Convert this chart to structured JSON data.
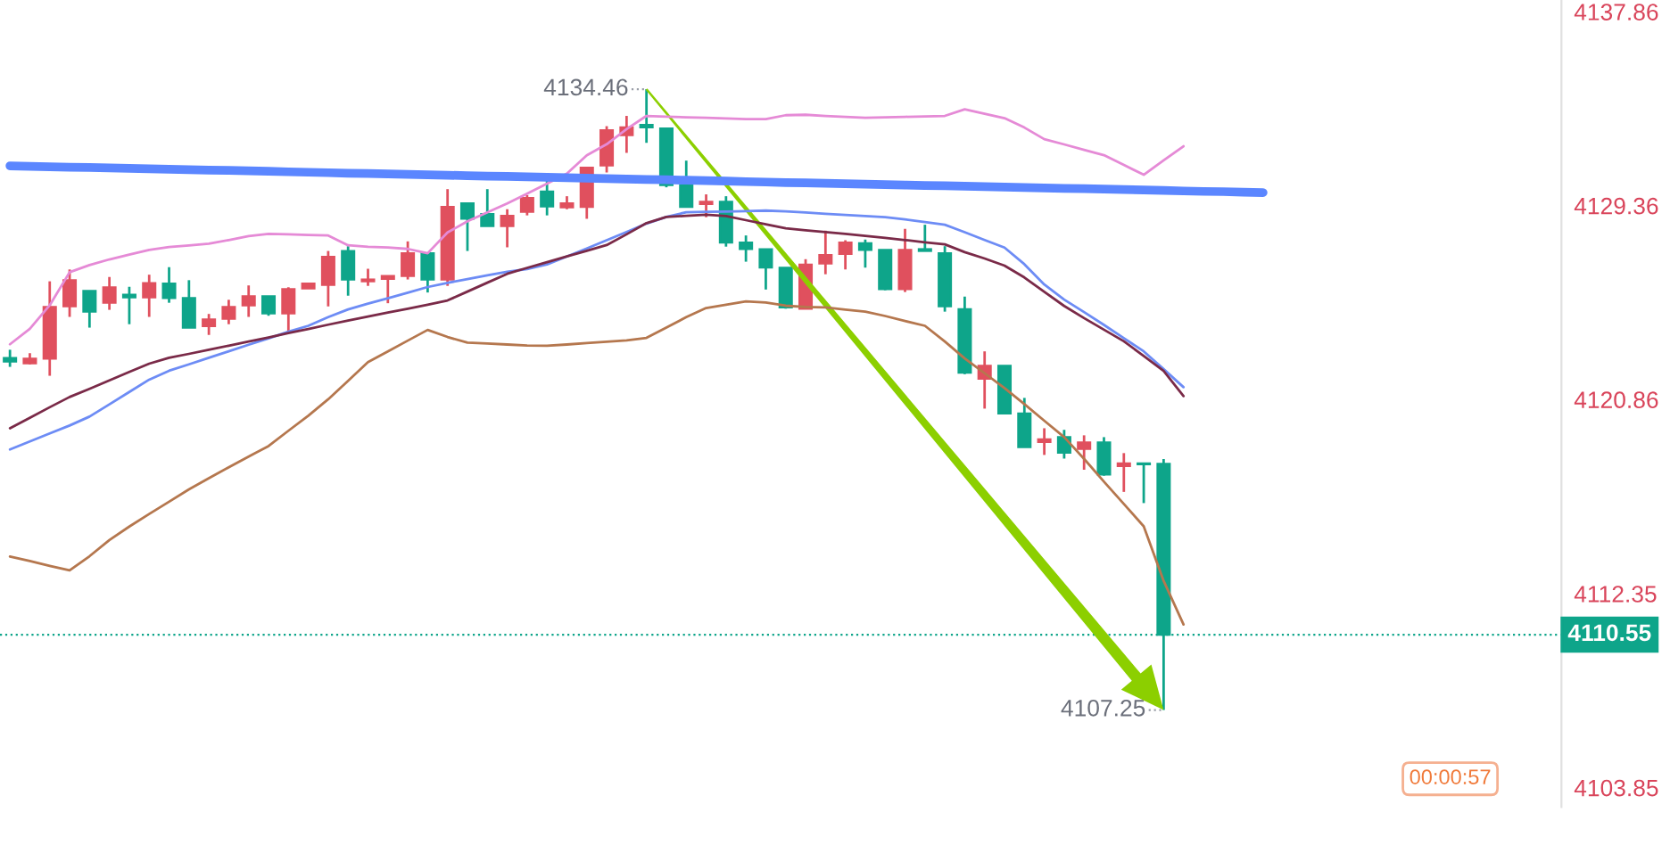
{
  "chart_data": {
    "type": "candlestick",
    "categories": [
      null,
      null,
      null,
      null,
      null,
      null,
      null,
      null,
      null,
      null,
      null,
      null,
      null,
      null,
      null,
      null,
      null,
      null,
      null,
      null,
      null,
      null,
      null,
      null,
      null,
      null,
      null,
      null,
      null,
      null,
      null,
      null,
      null,
      null,
      null,
      null,
      null,
      null,
      null,
      null,
      null,
      null,
      null,
      null,
      null,
      null,
      null,
      null,
      null,
      null,
      null,
      null,
      null,
      null,
      null,
      null,
      null,
      null,
      null,
      null,
      null,
      null,
      null,
      null
    ],
    "ohlc": [
      [
        4122.68,
        4123.04,
        4122.29,
        4122.52
      ],
      [
        4122.44,
        4122.89,
        4122.4,
        4122.65
      ],
      [
        4122.65,
        4126.04,
        4121.9,
        4124.92
      ],
      [
        4124.94,
        4126.56,
        4124.48,
        4126.09
      ],
      [
        4125.62,
        4125.62,
        4124.01,
        4124.71
      ],
      [
        4125.1,
        4126.23,
        4124.79,
        4125.78
      ],
      [
        4125.45,
        4125.8,
        4124.16,
        4125.34
      ],
      [
        4125.34,
        4126.33,
        4124.48,
        4125.96
      ],
      [
        4125.94,
        4126.66,
        4125.1,
        4125.31
      ],
      [
        4125.31,
        4126.09,
        4124.01,
        4124.01
      ],
      [
        4124.08,
        4124.61,
        4123.69,
        4124.37
      ],
      [
        4124.4,
        4125.23,
        4124.16,
        4124.92
      ],
      [
        4124.98,
        4125.86,
        4124.48,
        4125.39
      ],
      [
        4125.39,
        4125.39,
        4124.53,
        4124.63
      ],
      [
        4124.63,
        4125.78,
        4123.77,
        4125.7
      ],
      [
        4125.73,
        4125.94,
        4125.73,
        4125.94
      ],
      [
        4125.88,
        4127.37,
        4124.94,
        4127.11
      ],
      [
        4127.37,
        4127.58,
        4125.41,
        4126.12
      ],
      [
        4126.04,
        4126.59,
        4125.84,
        4126.12
      ],
      [
        4126.15,
        4126.27,
        4125.08,
        4126.27
      ],
      [
        4126.27,
        4127.79,
        4126.12,
        4127.27
      ],
      [
        4127.27,
        4127.27,
        4125.55,
        4126.12
      ],
      [
        4126.12,
        4130.08,
        4125.84,
        4129.3
      ],
      [
        4129.46,
        4129.46,
        4127.37,
        4128.78
      ],
      [
        4128.99,
        4130.08,
        4128.46,
        4128.46
      ],
      [
        4128.46,
        4129.2,
        4127.53,
        4128.91
      ],
      [
        4129.09,
        4129.82,
        4128.93,
        4129.69
      ],
      [
        4129.98,
        4130.5,
        4128.93,
        4129.32
      ],
      [
        4129.28,
        4129.77,
        4129.2,
        4129.46
      ],
      [
        4129.3,
        4131.02,
        4128.78,
        4131.02
      ],
      [
        4131.12,
        4132.84,
        4130.81,
        4132.66
      ],
      [
        4132.45,
        4133.29,
        4131.67,
        4132.79
      ],
      [
        4132.9,
        4134.46,
        4132.11,
        4132.79
      ],
      [
        4132.74,
        4132.74,
        4130.16,
        4130.26
      ],
      [
        4130.24,
        4131.33,
        4129.3,
        4129.3
      ],
      [
        4129.43,
        4129.85,
        4128.85,
        4129.53
      ],
      [
        4129.53,
        4129.77,
        4127.56,
        4127.74
      ],
      [
        4127.74,
        4128.05,
        4126.9,
        4127.45
      ],
      [
        4127.45,
        4127.45,
        4125.68,
        4126.64
      ],
      [
        4126.64,
        4126.64,
        4124.84,
        4124.9
      ],
      [
        4124.84,
        4127.01,
        4124.82,
        4126.77
      ],
      [
        4126.82,
        4128.26,
        4126.35,
        4127.19
      ],
      [
        4127.24,
        4127.84,
        4126.56,
        4127.74
      ],
      [
        4127.71,
        4127.87,
        4126.64,
        4127.42
      ],
      [
        4127.42,
        4127.42,
        4125.65,
        4125.7
      ],
      [
        4125.7,
        4128.34,
        4125.57,
        4127.42
      ],
      [
        4127.45,
        4128.52,
        4127.37,
        4127.37
      ],
      [
        4127.27,
        4127.58,
        4124.71,
        4124.94
      ],
      [
        4124.82,
        4125.37,
        4121.97,
        4122.03
      ],
      [
        4121.77,
        4122.97,
        4120.46,
        4122.34
      ],
      [
        4122.34,
        4122.34,
        4120.25,
        4120.25
      ],
      [
        4120.25,
        4120.93,
        4118.77,
        4118.77
      ],
      [
        4119.0,
        4119.6,
        4118.43,
        4119.11
      ],
      [
        4119.21,
        4119.53,
        4118.27,
        4118.53
      ],
      [
        4118.69,
        4119.29,
        4117.78,
        4118.98
      ],
      [
        4118.98,
        4119.21,
        4117.52,
        4117.57
      ],
      [
        4117.94,
        4118.51,
        4116.81,
        4118.06
      ],
      [
        4118.06,
        4118.06,
        4116.32,
        4118.02
      ],
      [
        4118.04,
        4118.25,
        4107.25,
        4110.55
      ],
      null,
      null,
      null,
      null,
      null
    ],
    "colors": [
      "#0ea58a",
      "#e0505e",
      "#e0505e",
      "#e0505e",
      "#0ea58a",
      "#e0505e",
      "#0ea58a",
      "#e0505e",
      "#0ea58a",
      "#0ea58a",
      "#e0505e",
      "#e0505e",
      "#e0505e",
      "#0ea58a",
      "#e0505e",
      "#e0505e",
      "#e0505e",
      "#0ea58a",
      "#e0505e",
      "#e0505e",
      "#e0505e",
      "#0ea58a",
      "#e0505e",
      "#0ea58a",
      "#0ea58a",
      "#e0505e",
      "#e0505e",
      "#0ea58a",
      "#e0505e",
      "#e0505e",
      "#e0505e",
      "#e0505e",
      "#0ea58a",
      "#0ea58a",
      "#0ea58a",
      "#e0505e",
      "#0ea58a",
      "#0ea58a",
      "#0ea58a",
      "#0ea58a",
      "#e0505e",
      "#e0505e",
      "#e0505e",
      "#0ea58a",
      "#0ea58a",
      "#e0505e",
      "#0ea58a",
      "#0ea58a",
      "#0ea58a",
      "#e0505e",
      "#0ea58a",
      "#0ea58a",
      "#e0505e",
      "#0ea58a",
      "#e0505e",
      "#0ea58a",
      "#e0505e",
      "#0ea58a",
      "#0ea58a",
      null,
      null,
      null,
      null,
      null
    ],
    "series": [
      {
        "type": "line",
        "color": "#e58ad6",
        "values": [
          4123.28,
          4123.96,
          4124.99,
          4126.44,
          4126.75,
          4127.0,
          4127.21,
          4127.42,
          4127.54,
          4127.61,
          4127.69,
          4127.85,
          4128.02,
          4128.12,
          4128.1,
          4128.07,
          4128.05,
          4127.62,
          4127.55,
          4127.52,
          4127.46,
          4127.27,
          4128.18,
          4128.67,
          4129.06,
          4129.45,
          4129.88,
          4130.32,
          4130.76,
          4131.56,
          4132.05,
          4132.71,
          4133.29,
          4133.26,
          4133.23,
          4133.21,
          4133.18,
          4133.15,
          4133.15,
          4133.32,
          4133.34,
          4133.29,
          4133.25,
          4133.21,
          4133.23,
          4133.25,
          4133.27,
          4133.29,
          4133.58,
          4133.38,
          4133.19,
          4132.78,
          4132.27,
          4132.04,
          4131.8,
          4131.57,
          4131.14,
          4130.71,
          4131.34,
          4131.96,
          null,
          null,
          null,
          null
        ]
      },
      {
        "type": "line",
        "color": "#6d8cf5",
        "values": [
          4118.67,
          4119.02,
          4119.37,
          4119.72,
          4120.11,
          4120.65,
          4121.19,
          4121.73,
          4122.12,
          4122.4,
          4122.69,
          4122.97,
          4123.26,
          4123.54,
          4123.83,
          4124.09,
          4124.47,
          4124.81,
          4125.06,
          4125.3,
          4125.54,
          4125.79,
          4125.97,
          4126.14,
          4126.3,
          4126.46,
          4126.58,
          4126.78,
          4127.13,
          4127.48,
          4127.84,
          4128.2,
          4128.57,
          4128.86,
          4129.07,
          4129.09,
          4129.1,
          4129.12,
          4129.14,
          4129.11,
          4129.06,
          4129.0,
          4128.95,
          4128.9,
          4128.85,
          4128.75,
          4128.64,
          4128.52,
          4128.19,
          4127.85,
          4127.52,
          4126.79,
          4125.9,
          4125.24,
          4124.69,
          4124.13,
          4123.55,
          4122.97,
          4122.19,
          4121.4,
          null,
          null,
          null,
          null
        ]
      },
      {
        "type": "line",
        "color": "#7a2a48",
        "values": [
          4119.6,
          4120.06,
          4120.52,
          4120.97,
          4121.33,
          4121.7,
          4122.07,
          4122.43,
          4122.69,
          4122.86,
          4123.04,
          4123.22,
          4123.4,
          4123.58,
          4123.77,
          4123.95,
          4124.14,
          4124.32,
          4124.5,
          4124.67,
          4124.84,
          4125.01,
          4125.2,
          4125.59,
          4125.98,
          4126.37,
          4126.63,
          4126.88,
          4127.13,
          4127.38,
          4127.63,
          4128.1,
          4128.59,
          4128.86,
          4128.91,
          4128.96,
          4128.9,
          4128.72,
          4128.54,
          4128.36,
          4128.28,
          4128.2,
          4128.12,
          4128.03,
          4127.94,
          4127.85,
          4127.75,
          4127.66,
          4127.32,
          4127.04,
          4126.73,
          4126.21,
          4125.58,
          4124.96,
          4124.43,
          4123.92,
          4123.41,
          4122.77,
          4122.11,
          4121.01,
          null,
          null,
          null,
          null
        ]
      },
      {
        "type": "line",
        "color": "#b5774e",
        "values": [
          4113.98,
          4113.78,
          4113.57,
          4113.37,
          4113.99,
          4114.7,
          4115.29,
          4115.84,
          4116.38,
          4116.92,
          4117.41,
          4117.89,
          4118.36,
          4118.82,
          4119.49,
          4120.15,
          4120.87,
          4121.68,
          4122.5,
          4122.97,
          4123.44,
          4123.91,
          4123.6,
          4123.35,
          4123.31,
          4123.27,
          4123.23,
          4123.22,
          4123.27,
          4123.33,
          4123.39,
          4123.45,
          4123.56,
          4124.01,
          4124.47,
          4124.87,
          4125.01,
          4125.16,
          4125.11,
          4124.97,
          4124.92,
          4124.9,
          4124.8,
          4124.71,
          4124.52,
          4124.3,
          4124.09,
          4123.4,
          4122.66,
          4122.01,
          4121.36,
          4120.66,
          4119.93,
          4119.21,
          4118.26,
          4117.26,
          4116.28,
          4115.3,
          4112.91,
          4111.0,
          null,
          null,
          null,
          null
        ]
      },
      {
        "type": "line",
        "color": "#5b86ff",
        "values": [
          4131.1,
          4131.08,
          4131.06,
          4131.04,
          4131.03,
          4131.01,
          4130.99,
          4130.97,
          4130.95,
          4130.93,
          4130.91,
          4130.9,
          4130.88,
          4130.86,
          4130.84,
          4130.82,
          4130.8,
          4130.78,
          4130.77,
          4130.75,
          4130.73,
          4130.71,
          4130.69,
          4130.67,
          4130.65,
          4130.64,
          4130.62,
          4130.6,
          4130.58,
          4130.56,
          4130.54,
          4130.52,
          4130.5,
          4130.49,
          4130.47,
          4130.45,
          4130.43,
          4130.41,
          4130.39,
          4130.37,
          4130.36,
          4130.34,
          4130.32,
          4130.3,
          4130.28,
          4130.26,
          4130.24,
          4130.23,
          4130.21,
          4130.19,
          4130.17,
          4130.15,
          4130.13,
          4130.11,
          4130.1,
          4130.08,
          4130.06,
          4130.04,
          4130.02,
          4130.0,
          4129.98,
          4129.97,
          4129.95,
          4129.93
        ]
      }
    ],
    "ylim": [
      4103.0,
      4138.37
    ],
    "yticks": [
      4137.86,
      4129.36,
      4120.86,
      4112.35,
      4103.85
    ],
    "tick_labels": "y",
    "ref_lines": [
      {
        "axis": "y",
        "value": 4110.55,
        "label": "4110.55",
        "color": "#0ea58a",
        "line_style": "dotted"
      }
    ],
    "annotations": [
      "4134.46",
      "4107.25",
      "00:00:57"
    ]
  }
}
